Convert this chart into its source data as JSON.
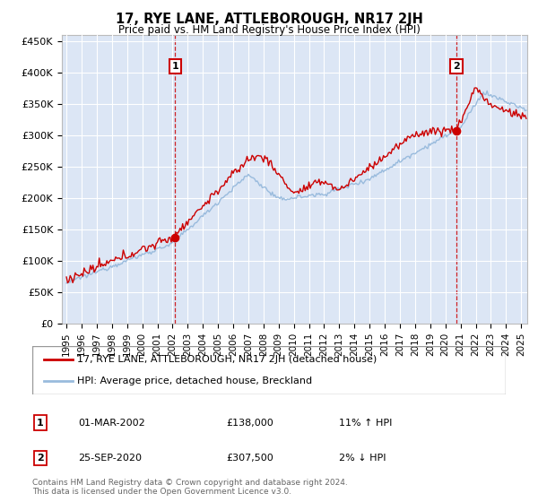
{
  "title": "17, RYE LANE, ATTLEBOROUGH, NR17 2JH",
  "subtitle": "Price paid vs. HM Land Registry's House Price Index (HPI)",
  "ylabel_ticks": [
    "£0",
    "£50K",
    "£100K",
    "£150K",
    "£200K",
    "£250K",
    "£300K",
    "£350K",
    "£400K",
    "£450K"
  ],
  "ytick_values": [
    0,
    50000,
    100000,
    150000,
    200000,
    250000,
    300000,
    350000,
    400000,
    450000
  ],
  "ylim": [
    0,
    460000
  ],
  "xlim_start": 1994.7,
  "xlim_end": 2025.4,
  "background_color": "#dce6f5",
  "plot_bg_color": "#dce6f5",
  "grid_color": "#ffffff",
  "legend_entry1": "17, RYE LANE, ATTLEBOROUGH, NR17 2JH (detached house)",
  "legend_entry2": "HPI: Average price, detached house, Breckland",
  "marker1_label": "1",
  "marker1_x": 2002.17,
  "marker1_y": 138000,
  "marker1_date": "01-MAR-2002",
  "marker1_price": "£138,000",
  "marker1_hpi": "11% ↑ HPI",
  "marker2_label": "2",
  "marker2_x": 2020.73,
  "marker2_y": 307500,
  "marker2_date": "25-SEP-2020",
  "marker2_price": "£307,500",
  "marker2_hpi": "2% ↓ HPI",
  "footnote": "Contains HM Land Registry data © Crown copyright and database right 2024.\nThis data is licensed under the Open Government Licence v3.0.",
  "line_color_red": "#cc0000",
  "line_color_blue": "#99bbdd",
  "marker_box_color": "#cc0000",
  "marker_box_text": "#cc0000"
}
